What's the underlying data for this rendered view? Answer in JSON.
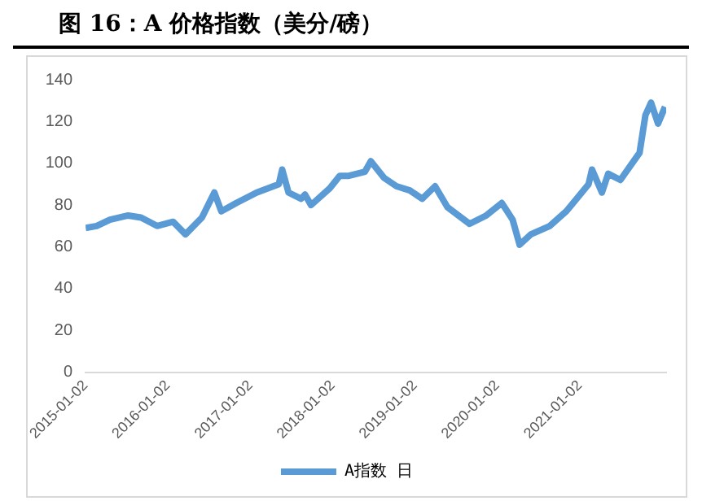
{
  "chart_data": {
    "type": "line",
    "title": "图 16：A 价格指数（美分/磅）",
    "x": [
      "2015-01-02",
      "2015-02-20",
      "2015-04-20",
      "2015-07-10",
      "2015-09-05",
      "2015-11-15",
      "2016-01-25",
      "2016-03-20",
      "2016-06-01",
      "2016-07-26",
      "2016-08-26",
      "2016-11-01",
      "2017-01-30",
      "2017-05-08",
      "2017-05-23",
      "2017-06-20",
      "2017-08-15",
      "2017-09-01",
      "2017-09-28",
      "2017-12-20",
      "2018-02-02",
      "2018-03-15",
      "2018-05-25",
      "2018-06-20",
      "2018-08-18",
      "2018-10-12",
      "2018-12-10",
      "2019-02-03",
      "2019-04-01",
      "2019-05-26",
      "2019-09-01",
      "2019-11-14",
      "2020-01-22",
      "2020-03-10",
      "2020-04-10",
      "2020-05-30",
      "2020-08-22",
      "2020-11-03",
      "2021-02-10",
      "2021-02-25",
      "2021-04-10",
      "2021-05-08",
      "2021-07-01",
      "2021-09-24",
      "2021-10-20",
      "2021-11-14",
      "2021-12-15",
      "2022-01-15"
    ],
    "series": [
      {
        "name": "A指数 日",
        "color": "#5b9bd5",
        "values": [
          69,
          70,
          73,
          75,
          74,
          70,
          72,
          66,
          74,
          86,
          77,
          81,
          86,
          90,
          97,
          86,
          83,
          85,
          80,
          88,
          94,
          94,
          96,
          101,
          93,
          89,
          87,
          83,
          89,
          79,
          71,
          75,
          81,
          73,
          61,
          66,
          70,
          77,
          90,
          97,
          86,
          95,
          92,
          105,
          123,
          129,
          119,
          127
        ]
      }
    ],
    "xlim": [
      "2015-01-02",
      "2022-01-20"
    ],
    "xticks": [
      "2015-01-02",
      "2016-01-02",
      "2017-01-02",
      "2018-01-02",
      "2019-01-02",
      "2020-01-02",
      "2021-01-02"
    ],
    "ylim": [
      0,
      140
    ],
    "yticks": [
      0,
      20,
      40,
      60,
      80,
      100,
      120,
      140
    ],
    "legend": "bottom",
    "marker": "none",
    "line_style": "solid"
  }
}
